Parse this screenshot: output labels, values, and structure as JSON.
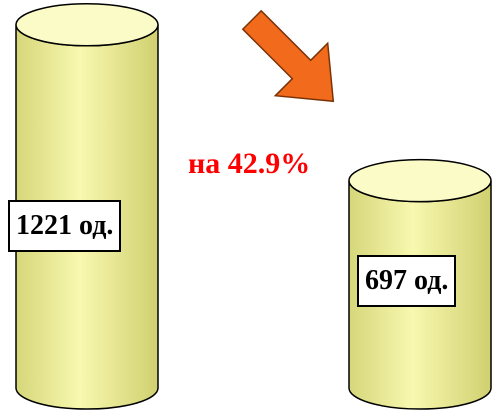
{
  "chart_data": {
    "type": "bar",
    "categories": [
      "",
      ""
    ],
    "values": [
      1221,
      697
    ],
    "value_labels": [
      "1221 од.",
      "697 од."
    ],
    "change_label": "на 42.9%",
    "change_direction": "down",
    "title": "",
    "xlabel": "",
    "ylabel": ""
  },
  "colors": {
    "bar_body": "#f4f49c",
    "bar_top": "#fbfbc8",
    "bar_outline": "#000000",
    "arrow_fill": "#f26a1b",
    "arrow_outline": "#7a3308",
    "change_text": "#ff0000"
  },
  "icons": {
    "arrow": "down-right-arrow-icon"
  }
}
